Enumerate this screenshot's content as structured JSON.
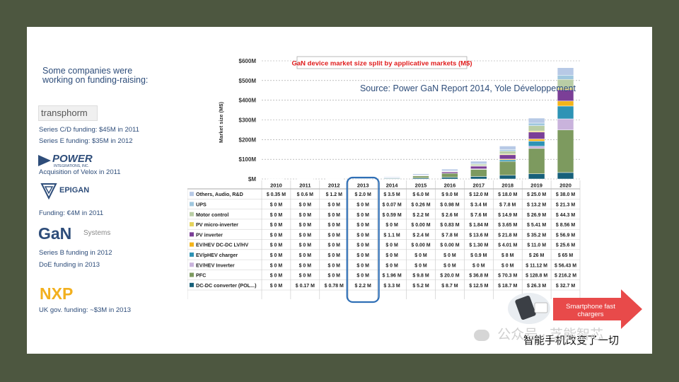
{
  "intro_text": "Some companies were working on funding-raising:",
  "companies": [
    {
      "logo": "transphorm",
      "notes": [
        "Series C/D funding: $45M in 2011",
        "Series E funding: $35M in 2012"
      ]
    },
    {
      "logo": "POWER",
      "logo_sub": "INTEGRATIONS, INC.",
      "notes": [
        "Acquisition of Velox in 2011"
      ]
    },
    {
      "logo": "EPIGAN",
      "notes": [
        "Funding: €4M in 2011"
      ]
    },
    {
      "logo": "GaN",
      "logo_sub": "Systems",
      "notes": [
        "Series B funding in 2012",
        "DoE funding in 2013"
      ]
    },
    {
      "logo": "NXP",
      "notes": [
        "UK gov. funding: ~$3M in 2013"
      ]
    }
  ],
  "colors": {
    "background": "#4d5740",
    "title_red": "#e01b1b",
    "source_blue": "#2e4d7a",
    "highlight": "#2f6fb6",
    "arrow": "#e84a4a"
  },
  "chart_data": {
    "type": "bar",
    "stacked": true,
    "title": "GaN device market size split by applicative markets (M$)",
    "subtitle": "Source: Power GaN Report 2014, Yole Développement",
    "ylabel": "Market size (M$)",
    "ylim": [
      0,
      600
    ],
    "yticks": [
      "$M",
      "$100M",
      "$200M",
      "$300M",
      "$400M",
      "$500M",
      "$600M"
    ],
    "grid": true,
    "categories": [
      "2010",
      "2011",
      "2012",
      "2013",
      "2014",
      "2015",
      "2016",
      "2017",
      "2018",
      "2019",
      "2020"
    ],
    "highlight_category": "2013",
    "series": [
      {
        "name": "DC-DC converter (POL...)",
        "color": "#17607a",
        "values": [
          0,
          0.17,
          0.78,
          2.2,
          3.3,
          5.2,
          8.7,
          12.5,
          18.7,
          26.3,
          32.7
        ],
        "labels": [
          "$ 0 M",
          "$ 0.17 M",
          "$ 0.78 M",
          "$ 2.2 M",
          "$ 3.3 M",
          "$ 5.2 M",
          "$ 8.7 M",
          "$ 12.5 M",
          "$ 18.7 M",
          "$ 26.3 M",
          "$ 32.7 M"
        ]
      },
      {
        "name": "PFC",
        "color": "#7d9a5f",
        "values": [
          0,
          0,
          0,
          0,
          1.96,
          9.8,
          20.0,
          36.8,
          70.3,
          128.8,
          216.2
        ],
        "labels": [
          "$ 0 M",
          "$ 0 M",
          "$ 0 M",
          "$ 0 M",
          "$ 1.96 M",
          "$ 9.8 M",
          "$ 20.0 M",
          "$ 36.8 M",
          "$ 70.3 M",
          "$ 128.8 M",
          "$ 216.2 M"
        ]
      },
      {
        "name": "EV/HEV Inverter",
        "color": "#c9b3dc",
        "values": [
          0,
          0,
          0,
          0,
          0,
          0,
          0,
          0,
          0,
          11.12,
          56.43
        ],
        "labels": [
          "$ 0 M",
          "$ 0 M",
          "$ 0 M",
          "$ 0 M",
          "$ 0 M",
          "$ 0 M",
          "$ 0 M",
          "$ 0 M",
          "$ 0 M",
          "$ 11.12 M",
          "$ 56.43 M"
        ]
      },
      {
        "name": "EV/pHEV charger",
        "color": "#2e93b5",
        "values": [
          0,
          0,
          0,
          0,
          0,
          0,
          0,
          0.9,
          8,
          26,
          65
        ],
        "labels": [
          "$ 0 M",
          "$ 0 M",
          "$ 0 M",
          "$ 0 M",
          "$ 0 M",
          "$ 0 M",
          "$ 0 M",
          "$ 0.9 M",
          "$ 8 M",
          "$ 26 M",
          "$ 65 M"
        ]
      },
      {
        "name": "EV/HEV DC-DC LV/HV",
        "color": "#f4b41a",
        "values": [
          0,
          0,
          0,
          0,
          0,
          0,
          0,
          1.3,
          4.01,
          11.0,
          25.6
        ],
        "labels": [
          "$ 0 M",
          "$ 0 M",
          "$ 0 M",
          "$ 0 M",
          "$ 0 M",
          "$ 0.00 M",
          "$ 0.00 M",
          "$ 1.30 M",
          "$ 4.01 M",
          "$ 11.0 M",
          "$ 25.6 M"
        ]
      },
      {
        "name": "PV inverter",
        "color": "#7b3f97",
        "values": [
          0,
          0,
          0,
          0,
          1.1,
          2.4,
          7.8,
          13.6,
          21.8,
          35.2,
          56.9
        ],
        "labels": [
          "$ 0 M",
          "$ 0 M",
          "$ 0 M",
          "$ 0 M",
          "$ 1.1 M",
          "$ 2.4 M",
          "$ 7.8 M",
          "$ 13.6 M",
          "$ 21.8 M",
          "$ 35.2 M",
          "$ 56.9 M"
        ]
      },
      {
        "name": "PV micro-inverter",
        "color": "#e5d35c",
        "values": [
          0,
          0,
          0,
          0,
          0,
          0,
          0.83,
          1.84,
          3.65,
          5.41,
          8.56
        ],
        "labels": [
          "$ 0 M",
          "$ 0 M",
          "$ 0 M",
          "$ 0 M",
          "$ 0 M",
          "$ 0.00 M",
          "$ 0.83 M",
          "$ 1.84 M",
          "$ 3.65 M",
          "$ 5.41 M",
          "$ 8.56 M"
        ]
      },
      {
        "name": "Motor control",
        "color": "#b9cda5",
        "values": [
          0,
          0,
          0,
          0,
          0.59,
          2.2,
          2.6,
          7.6,
          14.9,
          26.9,
          44.3
        ],
        "labels": [
          "$ 0 M",
          "$ 0 M",
          "$ 0 M",
          "$ 0 M",
          "$ 0.59 M",
          "$ 2.2 M",
          "$ 2.6 M",
          "$ 7.6 M",
          "$ 14.9 M",
          "$ 26.9 M",
          "$ 44.3 M"
        ]
      },
      {
        "name": "UPS",
        "color": "#9fc7de",
        "values": [
          0,
          0,
          0,
          0,
          0.07,
          0.26,
          0.98,
          3.4,
          7.8,
          13.2,
          21.3
        ],
        "labels": [
          "$ 0 M",
          "$ 0 M",
          "$ 0 M",
          "$ 0 M",
          "$ 0.07 M",
          "$ 0.26 M",
          "$ 0.98 M",
          "$ 3.4 M",
          "$ 7.8 M",
          "$ 13.2 M",
          "$ 21.3 M"
        ]
      },
      {
        "name": "Others, Audio, R&D",
        "color": "#b7c9e6",
        "values": [
          0.35,
          0.6,
          1.2,
          2.0,
          3.5,
          6.0,
          9.0,
          12.0,
          18.0,
          25.0,
          38.0
        ],
        "labels": [
          "$ 0.35 M",
          "$ 0.6 M",
          "$ 1.2 M",
          "$ 2.0 M",
          "$ 3.5 M",
          "$ 6.0 M",
          "$ 9.0 M",
          "$ 12.0 M",
          "$ 18.0 M",
          "$ 25.0 M",
          "$ 38.0 M"
        ]
      }
    ]
  },
  "callout": {
    "arrow_text": "Smartphone fast chargers",
    "caption": "智能手机改变了一切"
  },
  "watermark": "公众号 · 芝能智芯"
}
